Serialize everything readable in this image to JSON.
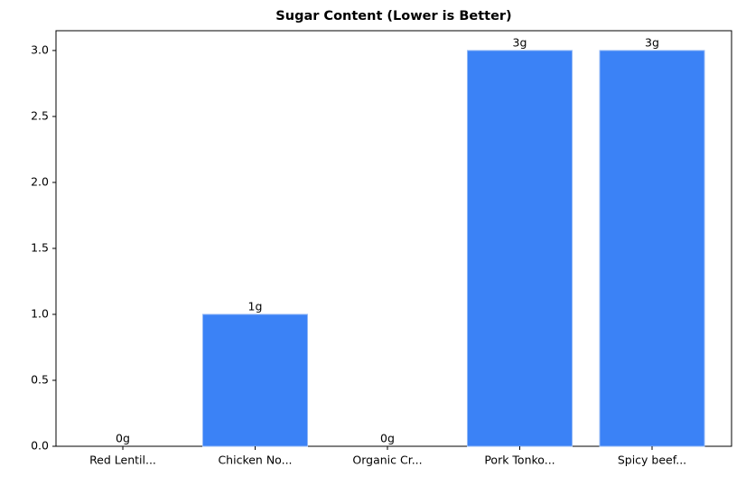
{
  "chart_data": {
    "type": "bar",
    "title": "Sugar Content (Lower is Better)",
    "categories": [
      "Red Lentil...",
      "Chicken No...",
      "Organic Cr...",
      "Pork Tonko...",
      "Spicy beef..."
    ],
    "values": [
      0,
      1,
      0,
      3,
      3
    ],
    "value_labels": [
      "0g",
      "1g",
      "0g",
      "3g",
      "3g"
    ],
    "color": "#3b82f6",
    "ylim": [
      0,
      3.15
    ],
    "yticks": [
      {
        "value": 0,
        "label": "0.0"
      },
      0.5,
      {
        "value": 1,
        "label": "1.0"
      },
      1.5,
      {
        "value": 2,
        "label": "2.0"
      },
      2.5,
      {
        "value": 3,
        "label": "3.0"
      }
    ],
    "grid": false
  }
}
